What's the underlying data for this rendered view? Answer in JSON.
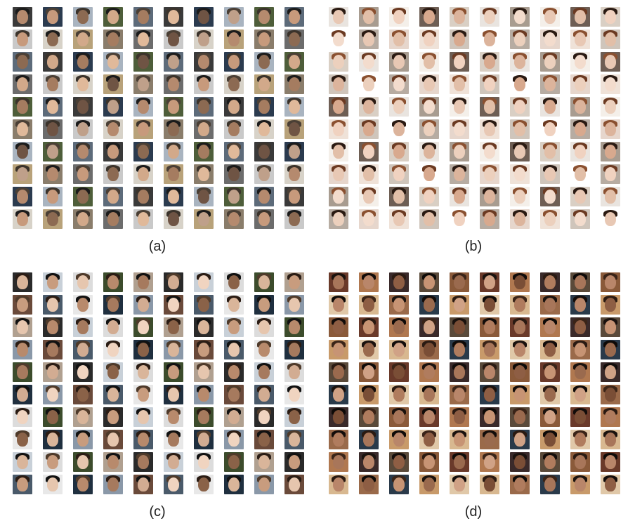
{
  "panels": [
    {
      "id": "a",
      "label": "(a)",
      "rows": 10,
      "cols": 10,
      "skin": [
        "#b58a6e",
        "#c79a7c",
        "#8c6a52",
        "#d2a98a",
        "#a57c60",
        "#e0b99a",
        "#6f5444",
        "#bfa08a"
      ],
      "hair": [
        "#1b1b1b",
        "#2c2620",
        "#3b332b",
        "#111111",
        "#4a3f35",
        "#7a7a7a"
      ],
      "bg": [
        "#3a3a3a",
        "#6c6c6c",
        "#a9b4c0",
        "#d7d2c8",
        "#5d6b7a",
        "#8a7d6b",
        "#2b3b4f",
        "#c9c9c9",
        "#4e5e3a",
        "#b8a27a"
      ]
    },
    {
      "id": "b",
      "label": "(b)",
      "rows": 10,
      "cols": 10,
      "skin": [
        "#e8c8b4",
        "#f0d2c0",
        "#dcb49c",
        "#f3dccd",
        "#e2bfa8",
        "#d8a98e",
        "#ecd0bd"
      ],
      "hair": [
        "#2a1a12",
        "#4a2a1a",
        "#6b3a22",
        "#1c1410",
        "#8a5030",
        "#3a2418"
      ],
      "bg": [
        "#e9e4df",
        "#cfc5bb",
        "#f4efe9",
        "#b7aca2",
        "#d9cfc4",
        "#efe2d8",
        "#a89c90",
        "#ffffff",
        "#6e5e54",
        "#e6d6cc"
      ]
    },
    {
      "id": "c",
      "label": "(c)",
      "rows": 10,
      "cols": 10,
      "skin": [
        "#d9b59a",
        "#c89c7e",
        "#e6c6ae",
        "#b88a6c",
        "#a67a5e",
        "#d2ac92",
        "#f0d4c0",
        "#8a6248"
      ],
      "hair": [
        "#2a1c14",
        "#1a1410",
        "#4e3a2a",
        "#6a5240",
        "#111111",
        "#3a2c22"
      ],
      "bg": [
        "#2a2a2a",
        "#8a98a8",
        "#dcdcdc",
        "#4a5a6a",
        "#b0a090",
        "#1f2f3f",
        "#c8d0d8",
        "#6a4a3a",
        "#3c4c2c",
        "#e8e8e8"
      ]
    },
    {
      "id": "d",
      "label": "(d)",
      "rows": 10,
      "cols": 10,
      "skin": [
        "#a8765a",
        "#b9866a",
        "#8e5e44",
        "#c79474",
        "#9a6a4e",
        "#d0a286",
        "#7a4e36",
        "#b07c5e"
      ],
      "hair": [
        "#1a120e",
        "#120c0a",
        "#2a1a12",
        "#0e0a08",
        "#3a2418"
      ],
      "bg": [
        "#6a3a2a",
        "#c89a6a",
        "#3a2a2a",
        "#d8b890",
        "#8a5a3a",
        "#2a3a4a",
        "#b07850",
        "#e0c8a8",
        "#5a4a3a",
        "#9a6a4a"
      ]
    }
  ]
}
